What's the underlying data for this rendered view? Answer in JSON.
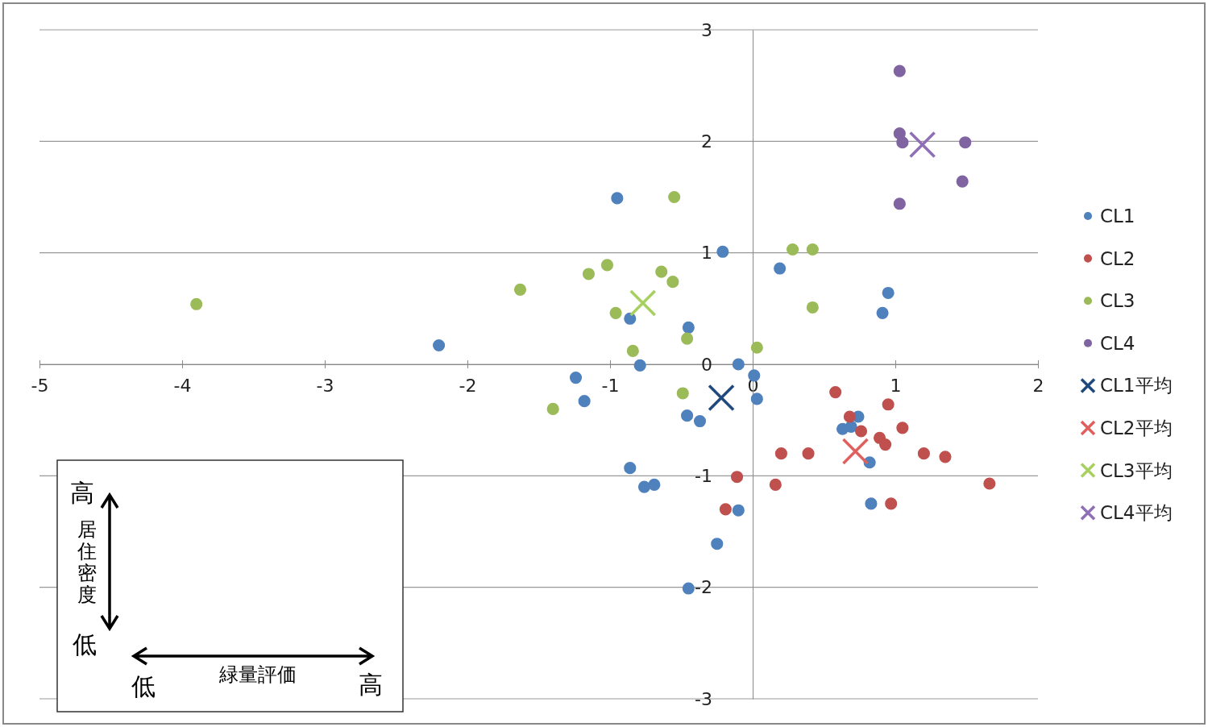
{
  "chart_data": {
    "type": "scatter",
    "xlim": [
      -5,
      2
    ],
    "ylim": [
      -3,
      3
    ],
    "xticks": [
      -5,
      -4,
      -3,
      -2,
      -1,
      0,
      1,
      2
    ],
    "yticks": [
      -3,
      -2,
      -1,
      0,
      1,
      2,
      3
    ],
    "grid": "y",
    "legend": "right",
    "annotations": [
      "高",
      "居住密度",
      "低",
      "低",
      "緑量評価",
      "高"
    ],
    "series": [
      {
        "name": "CL1",
        "color": "#4f81bd",
        "marker": "circle",
        "x": [
          -0.95,
          -0.21,
          0.19,
          0.95,
          0.91,
          -0.86,
          -0.45,
          -2.2,
          -0.79,
          -0.1,
          0.01,
          0.03,
          -1.24,
          -1.18,
          -0.46,
          -0.37,
          0.74,
          0.69,
          0.63,
          0.82,
          -0.86,
          -0.76,
          -0.69,
          -0.1,
          0.83,
          -0.25,
          -0.45
        ],
        "values": [
          1.49,
          1.01,
          0.86,
          0.64,
          0.46,
          0.41,
          0.33,
          0.17,
          -0.01,
          0.0,
          -0.1,
          -0.31,
          -0.12,
          -0.33,
          -0.46,
          -0.51,
          -0.47,
          -0.56,
          -0.58,
          -0.88,
          -0.93,
          -1.1,
          -1.08,
          -1.31,
          -1.25,
          -1.61,
          -2.01
        ]
      },
      {
        "name": "CL2",
        "color": "#c0504d",
        "marker": "circle",
        "x": [
          0.58,
          0.95,
          0.68,
          0.76,
          1.05,
          0.89,
          0.93,
          0.2,
          0.39,
          1.2,
          1.35,
          -0.11,
          0.16,
          1.66,
          -0.19,
          0.97
        ],
        "values": [
          -0.25,
          -0.36,
          -0.47,
          -0.6,
          -0.57,
          -0.66,
          -0.72,
          -0.8,
          -0.8,
          -0.8,
          -0.83,
          -1.01,
          -1.08,
          -1.07,
          -1.3,
          -1.25
        ]
      },
      {
        "name": "CL3",
        "color": "#9bbb59",
        "marker": "circle",
        "x": [
          -3.9,
          -1.63,
          -0.55,
          -1.02,
          -1.15,
          -0.64,
          -0.56,
          -0.96,
          -0.84,
          -0.46,
          0.03,
          0.28,
          0.42,
          0.42,
          -0.49,
          -1.4
        ],
        "values": [
          0.54,
          0.67,
          1.5,
          0.89,
          0.81,
          0.83,
          0.74,
          0.46,
          0.12,
          0.23,
          0.15,
          1.03,
          1.03,
          0.51,
          -0.26,
          -0.4
        ]
      },
      {
        "name": "CL4",
        "color": "#8064a2",
        "marker": "circle",
        "x": [
          1.03,
          1.03,
          1.05,
          1.49,
          1.47,
          1.03
        ],
        "values": [
          2.63,
          2.07,
          1.99,
          1.99,
          1.64,
          1.44
        ]
      },
      {
        "name": "CL1平均",
        "color": "#1f497d",
        "marker": "cross",
        "x": [
          -0.22
        ],
        "values": [
          -0.3
        ]
      },
      {
        "name": "CL2平均",
        "color": "#e0605d",
        "marker": "cross",
        "x": [
          0.72
        ],
        "values": [
          -0.78
        ]
      },
      {
        "name": "CL3平均",
        "color": "#a8d060",
        "marker": "cross",
        "x": [
          -0.77
        ],
        "values": [
          0.55
        ]
      },
      {
        "name": "CL4平均",
        "color": "#8f6fb5",
        "marker": "cross",
        "x": [
          1.19
        ],
        "values": [
          1.97
        ]
      }
    ]
  }
}
